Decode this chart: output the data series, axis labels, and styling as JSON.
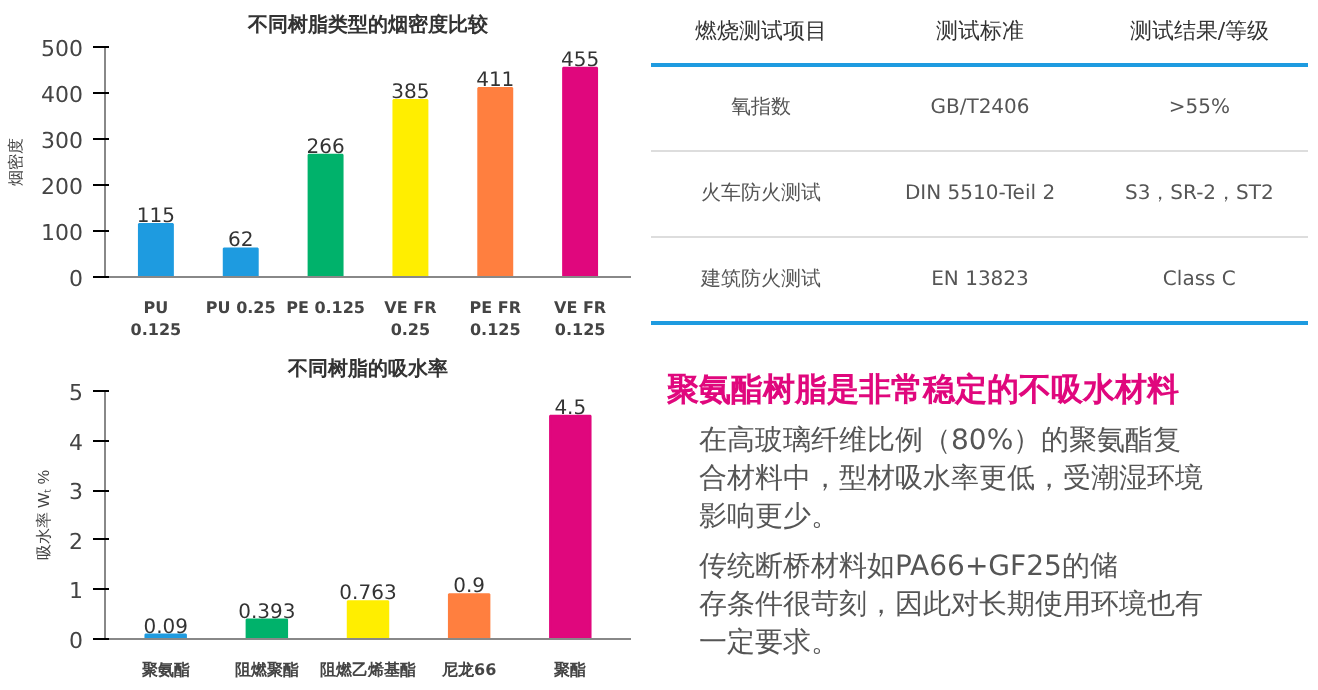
{
  "chart_data": [
    {
      "type": "bar",
      "title": "不同树脂类型的烟密度比较",
      "ylabel": "烟密度",
      "categories": [
        "PU\n0.125",
        "PU 0.25",
        "PE 0.125",
        "VE FR\n0.25",
        "PE FR\n0.125",
        "VE FR\n0.125"
      ],
      "values": [
        115,
        62,
        266,
        385,
        411,
        455
      ],
      "colors": [
        "#1e9be0",
        "#1e9be0",
        "#00b26b",
        "#ffee00",
        "#ff7f3f",
        "#e0077d"
      ],
      "ylim": [
        0,
        500
      ],
      "yticks": [
        0,
        100,
        200,
        300,
        400,
        500
      ],
      "data_labels": true
    },
    {
      "type": "bar",
      "title": "不同树脂的吸水率",
      "ylabel": "吸水率 Wₜ %",
      "categories": [
        "聚氨酯",
        "阻燃聚酯",
        "阻燃乙烯基酯",
        "尼龙66",
        "聚酯"
      ],
      "values": [
        0.09,
        0.393,
        0.763,
        0.9,
        4.5
      ],
      "colors": [
        "#1e9be0",
        "#00b26b",
        "#ffee00",
        "#ff7f3f",
        "#e0077d"
      ],
      "ylim": [
        0,
        5
      ],
      "yticks": [
        0,
        1,
        2,
        3,
        4,
        5
      ],
      "data_labels": true
    },
    {
      "type": "other",
      "categories": [
        "燃烧测试项目",
        "测试标准",
        "测试结果/等级"
      ],
      "annotations": [
        "氧指数",
        "GB/T2406",
        ">55%",
        "火车防火测试",
        "DIN 5510-Teil 2",
        "S3，SR-2，ST2",
        "建筑防火测试",
        "EN 13823",
        "Class C"
      ]
    },
    {
      "type": "other",
      "title": "聚氨酯树脂是非常稳定的不吸水材料",
      "color": "#e0077d",
      "annotations": [
        "在高玻璃纤维比例（80%）的聚氨酯复合材料中，型材吸水率更低，受潮湿环境影响更少。",
        "传统断桥材料如PA66+GF25的储存条件很苛刻，因此对长期使用环境也有一定要求。"
      ]
    }
  ]
}
